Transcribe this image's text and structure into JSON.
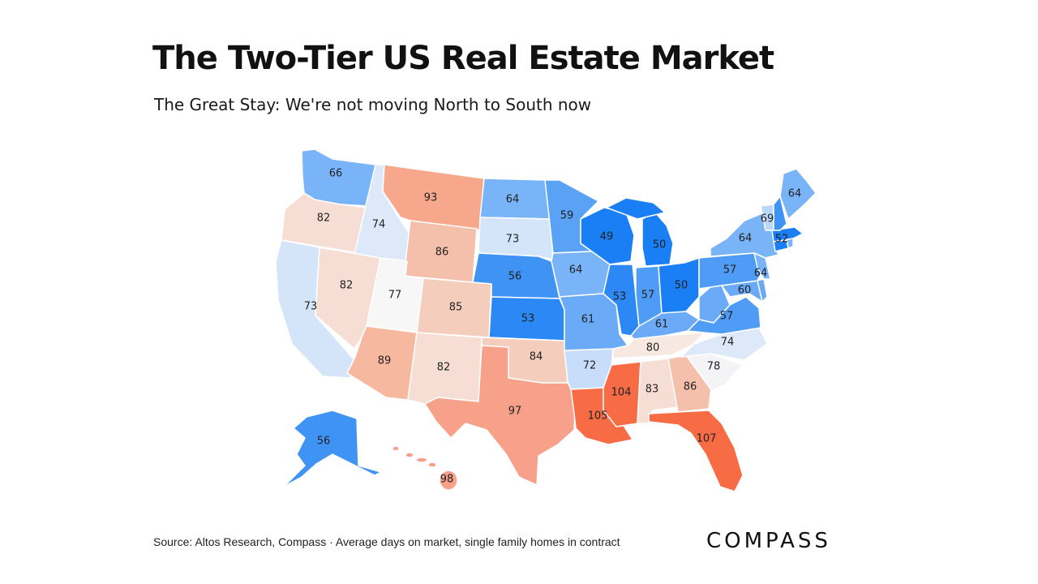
{
  "header": {
    "title": "The Two-Tier US Real Estate Market",
    "subtitle": "The Great Stay: We're not moving North to South now"
  },
  "footer": {
    "source": "Source: Altos Research, Compass · Average days on market, single family homes in contract",
    "logo": "COMPASS"
  },
  "map": {
    "colors": {
      "deep_blue": "#1a7ef5",
      "blue": "#3f93f5",
      "mid_blue": "#79b3f8",
      "light_blue": "#bcd8f9",
      "pale_blue": "#dde9f8",
      "neutral": "#f7f7f7",
      "pale_red": "#f6ded5",
      "light_red": "#f5cdbd",
      "salmon": "#f7a88c",
      "deep_orange": "#f76b45"
    },
    "states": [
      {
        "id": "WA",
        "value": "66",
        "color": "#79b3f8"
      },
      {
        "id": "OR",
        "value": "82",
        "color": "#f6ded5"
      },
      {
        "id": "CA",
        "value": "73",
        "color": "#d4e5f9"
      },
      {
        "id": "ID",
        "value": "74",
        "color": "#dde9f8"
      },
      {
        "id": "NV",
        "value": "82",
        "color": "#f6ded5"
      },
      {
        "id": "MT",
        "value": "93",
        "color": "#f7a88c"
      },
      {
        "id": "WY",
        "value": "86",
        "color": "#f5c0ab"
      },
      {
        "id": "UT",
        "value": "77",
        "color": "#f7f7f7"
      },
      {
        "id": "CO",
        "value": "85",
        "color": "#f5cdbd"
      },
      {
        "id": "AZ",
        "value": "89",
        "color": "#f7b8a0"
      },
      {
        "id": "NM",
        "value": "82",
        "color": "#f6ded5"
      },
      {
        "id": "ND",
        "value": "64",
        "color": "#79b3f8"
      },
      {
        "id": "SD",
        "value": "73",
        "color": "#d4e5f9"
      },
      {
        "id": "NE",
        "value": "56",
        "color": "#3f93f5"
      },
      {
        "id": "KS",
        "value": "53",
        "color": "#2c88f5"
      },
      {
        "id": "OK",
        "value": "84",
        "color": "#f5cdbd"
      },
      {
        "id": "TX",
        "value": "97",
        "color": "#f7a08a"
      },
      {
        "id": "MN",
        "value": "59",
        "color": "#5aa2f6"
      },
      {
        "id": "IA",
        "value": "64",
        "color": "#79b3f8"
      },
      {
        "id": "MO",
        "value": "61",
        "color": "#6aaaf7"
      },
      {
        "id": "AR",
        "value": "72",
        "color": "#c8ddf9"
      },
      {
        "id": "LA",
        "value": "105",
        "color": "#f76b45"
      },
      {
        "id": "WI",
        "value": "49",
        "color": "#1a7ef5"
      },
      {
        "id": "IL",
        "value": "53",
        "color": "#2c88f5"
      },
      {
        "id": "MI",
        "value": "50",
        "color": "#1a7ef5"
      },
      {
        "id": "IN",
        "value": "57",
        "color": "#4f9cf6"
      },
      {
        "id": "OH",
        "value": "50",
        "color": "#1a7ef5"
      },
      {
        "id": "KY",
        "value": "61",
        "color": "#6aaaf7"
      },
      {
        "id": "TN",
        "value": "80",
        "color": "#f8e8e2"
      },
      {
        "id": "MS",
        "value": "104",
        "color": "#f76b45"
      },
      {
        "id": "AL",
        "value": "83",
        "color": "#f6ded5"
      },
      {
        "id": "GA",
        "value": "86",
        "color": "#f5c0ab"
      },
      {
        "id": "FL",
        "value": "107",
        "color": "#f76b45"
      },
      {
        "id": "SC",
        "value": "78",
        "color": "#f4f4f6"
      },
      {
        "id": "NC",
        "value": "74",
        "color": "#dde9f8"
      },
      {
        "id": "VA",
        "value": "57",
        "color": "#4f9cf6"
      },
      {
        "id": "WV",
        "value": "",
        "color": "#6aaaf7"
      },
      {
        "id": "MD",
        "value": "60",
        "color": "#6aaaf7"
      },
      {
        "id": "DE",
        "value": "",
        "color": "#6aaaf7"
      },
      {
        "id": "PA",
        "value": "57",
        "color": "#4f9cf6"
      },
      {
        "id": "NJ",
        "value": "64",
        "color": "#79b3f8"
      },
      {
        "id": "NY",
        "value": "64",
        "color": "#79b3f8"
      },
      {
        "id": "CT",
        "value": "",
        "color": "#1a7ef5"
      },
      {
        "id": "RI",
        "value": "",
        "color": "#79b3f8"
      },
      {
        "id": "MA",
        "value": "52",
        "color": "#1a7ef5"
      },
      {
        "id": "VT",
        "value": "69",
        "color": "#bcd8f9"
      },
      {
        "id": "NH",
        "value": "",
        "color": "#3f93f5"
      },
      {
        "id": "ME",
        "value": "64",
        "color": "#79b3f8"
      },
      {
        "id": "AK",
        "value": "56",
        "color": "#3f93f5"
      },
      {
        "id": "HI",
        "value": "98",
        "color": "#f7a08a"
      }
    ]
  }
}
